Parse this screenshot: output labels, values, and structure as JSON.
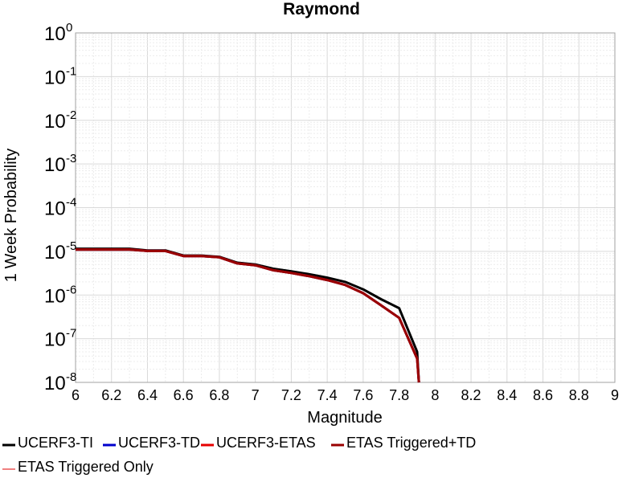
{
  "chart_data": {
    "type": "line",
    "title": "Raymond",
    "xlabel": "Magnitude",
    "ylabel": "1 Week Probability",
    "xlim": [
      6,
      9
    ],
    "ylim": [
      1e-08,
      1
    ],
    "yscale": "log",
    "grid": true,
    "legend_position": "bottom",
    "x_ticks": [
      "6",
      "6.2",
      "6.4",
      "6.6",
      "6.8",
      "7",
      "7.2",
      "7.4",
      "7.6",
      "7.8",
      "8",
      "8.2",
      "8.4",
      "8.6",
      "8.8",
      "9"
    ],
    "y_ticks": [
      {
        "base": "10",
        "exp": "-8",
        "value": 1e-08
      },
      {
        "base": "10",
        "exp": "-7",
        "value": 1e-07
      },
      {
        "base": "10",
        "exp": "-6",
        "value": 1e-06
      },
      {
        "base": "10",
        "exp": "-5",
        "value": 1e-05
      },
      {
        "base": "10",
        "exp": "-4",
        "value": 0.0001
      },
      {
        "base": "10",
        "exp": "-3",
        "value": 0.001
      },
      {
        "base": "10",
        "exp": "-2",
        "value": 0.01
      },
      {
        "base": "10",
        "exp": "-1",
        "value": 0.1
      },
      {
        "base": "10",
        "exp": "0",
        "value": 1
      }
    ],
    "series": [
      {
        "name": "UCERF3-TI",
        "color": "#000000",
        "x": [
          6.0,
          6.1,
          6.2,
          6.3,
          6.4,
          6.5,
          6.6,
          6.7,
          6.8,
          6.9,
          7.0,
          7.1,
          7.2,
          7.3,
          7.4,
          7.5,
          7.6,
          7.7,
          7.8,
          7.9,
          7.91
        ],
        "y": [
          1.15e-05,
          1.15e-05,
          1.15e-05,
          1.15e-05,
          1.05e-05,
          1.05e-05,
          8e-06,
          8e-06,
          7.5e-06,
          5.5e-06,
          5e-06,
          4e-06,
          3.5e-06,
          3e-06,
          2.5e-06,
          2e-06,
          1.35e-06,
          8e-07,
          5e-07,
          5e-08,
          1e-08
        ]
      },
      {
        "name": "UCERF3-TD",
        "color": "#0000cc",
        "x": [
          6.0,
          6.1,
          6.2,
          6.3,
          6.4,
          6.5,
          6.6,
          6.7,
          6.8,
          6.9,
          7.0,
          7.1,
          7.2,
          7.3,
          7.4,
          7.5,
          7.6,
          7.7,
          7.8,
          7.9,
          7.91
        ],
        "y": [
          1.1e-05,
          1.1e-05,
          1.1e-05,
          1.1e-05,
          1.02e-05,
          1.02e-05,
          7.8e-06,
          7.8e-06,
          7.3e-06,
          5.3e-06,
          4.8e-06,
          3.7e-06,
          3.2e-06,
          2.7e-06,
          2.2e-06,
          1.7e-06,
          1.1e-06,
          5.8e-07,
          3e-07,
          3.5e-08,
          1e-08
        ]
      },
      {
        "name": "UCERF3-ETAS",
        "color": "#e60000",
        "x": [
          6.0,
          6.1,
          6.2,
          6.3,
          6.4,
          6.5,
          6.6,
          6.7,
          6.8,
          6.9,
          7.0,
          7.1,
          7.2,
          7.3,
          7.4,
          7.5,
          7.6,
          7.7,
          7.8,
          7.9,
          7.91
        ],
        "y": [
          1.1e-05,
          1.1e-05,
          1.1e-05,
          1.1e-05,
          1.02e-05,
          1.02e-05,
          7.8e-06,
          7.8e-06,
          7.3e-06,
          5.3e-06,
          4.8e-06,
          3.7e-06,
          3.2e-06,
          2.7e-06,
          2.2e-06,
          1.7e-06,
          1.1e-06,
          5.8e-07,
          3e-07,
          3.5e-08,
          1e-08
        ]
      },
      {
        "name": "ETAS Triggered+TD",
        "color": "#990000",
        "x": [
          6.0,
          6.1,
          6.2,
          6.3,
          6.4,
          6.5,
          6.6,
          6.7,
          6.8,
          6.9,
          7.0,
          7.1,
          7.2,
          7.3,
          7.4,
          7.5,
          7.6,
          7.7,
          7.8,
          7.9,
          7.91
        ],
        "y": [
          1.1e-05,
          1.1e-05,
          1.1e-05,
          1.1e-05,
          1.02e-05,
          1.02e-05,
          7.8e-06,
          7.8e-06,
          7.3e-06,
          5.3e-06,
          4.8e-06,
          3.7e-06,
          3.2e-06,
          2.7e-06,
          2.2e-06,
          1.7e-06,
          1.1e-06,
          5.8e-07,
          3e-07,
          3.5e-08,
          1e-08
        ]
      },
      {
        "name": "ETAS Triggered Only",
        "color": "#f08080",
        "x": [],
        "y": []
      }
    ]
  }
}
